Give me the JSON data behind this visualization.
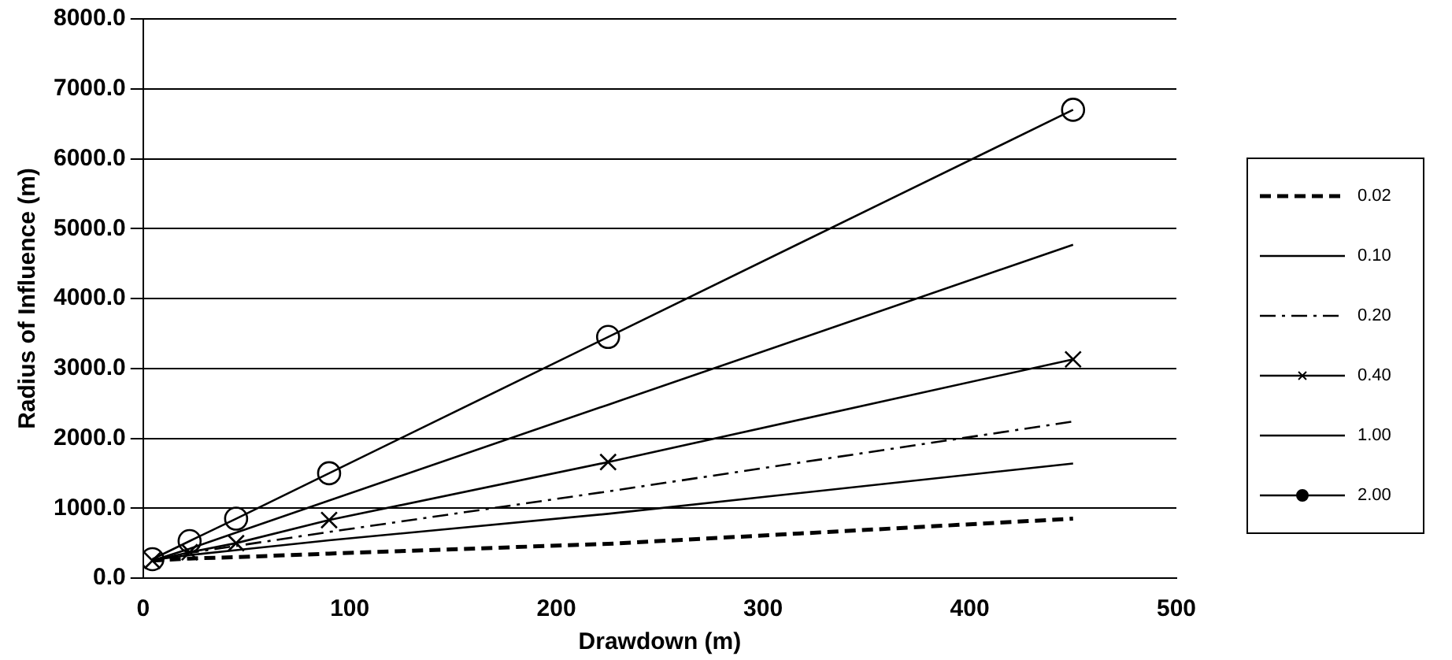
{
  "chart_data": {
    "type": "line",
    "xlabel": "Drawdown (m)",
    "ylabel": "Radius of Influence (m)",
    "x": [
      4.5,
      22.5,
      45,
      90,
      225,
      450
    ],
    "series": [
      {
        "name": "0.02",
        "color": "#000000",
        "line_style": "dashed",
        "marker": "none",
        "values": [
          250,
          280,
          300,
          350,
          490,
          850
        ]
      },
      {
        "name": "0.10",
        "color": "#000000",
        "line_style": "solid",
        "marker": "none",
        "values": [
          260,
          330,
          400,
          540,
          920,
          1640
        ]
      },
      {
        "name": "0.20",
        "color": "#000000",
        "line_style": "dashdot",
        "marker": "none",
        "values": [
          260,
          360,
          460,
          660,
          1240,
          2240
        ]
      },
      {
        "name": "0.40",
        "color": "#000000",
        "line_style": "solid",
        "marker": "cross",
        "values": [
          250,
          370,
          500,
          830,
          1660,
          3130
        ]
      },
      {
        "name": "1.00",
        "color": "#000000",
        "line_style": "solid",
        "marker": "none",
        "values": [
          250,
          420,
          650,
          1110,
          2480,
          4770
        ]
      },
      {
        "name": "2.00",
        "color": "#000000",
        "line_style": "solid",
        "marker": "circle",
        "values": [
          270,
          530,
          850,
          1500,
          3450,
          6700
        ]
      }
    ],
    "xlim": [
      0,
      500
    ],
    "xticks": [
      0,
      100,
      200,
      300,
      400,
      500
    ],
    "ylim": [
      0,
      8000
    ],
    "yticks": [
      {
        "value": 0,
        "label": "0.0"
      },
      {
        "value": 1000,
        "label": "1000.0"
      },
      {
        "value": 2000,
        "label": "2000.0"
      },
      {
        "value": 3000,
        "label": "3000.0"
      },
      {
        "value": 4000,
        "label": "4000.0"
      },
      {
        "value": 5000,
        "label": "5000.0"
      },
      {
        "value": 6000,
        "label": "6000.0"
      },
      {
        "value": 7000,
        "label": "7000.0"
      },
      {
        "value": 8000,
        "label": "8000.0"
      }
    ],
    "grid": "y",
    "legend": "right"
  }
}
